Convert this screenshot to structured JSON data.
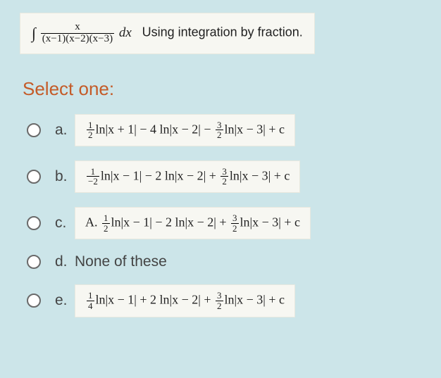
{
  "question": {
    "integral_symbol": "∫",
    "numerator": "x",
    "denominator": "(x−1)(x−2)(x−3)",
    "dx": "dx",
    "tail_text": "Using integration by fraction.",
    "box_bg": "#f7f7f2",
    "box_border": "#e8e8df"
  },
  "prompt": {
    "text": "Select one:",
    "color": "#c45b28",
    "fontsize": 26
  },
  "options": {
    "a": {
      "letter": "a.",
      "frac_num": "1",
      "frac_den": "2",
      "body": "ln|x + 1| − 4 ln|x − 2| − ",
      "frac2_num": "3",
      "frac2_den": "2",
      "tail": "ln|x − 3| + c"
    },
    "b": {
      "letter": "b.",
      "frac_num": "1",
      "frac_den": "−2",
      "body": "ln|x − 1| − 2 ln|x − 2| + ",
      "frac2_num": "3",
      "frac2_den": "2",
      "tail": "ln|x − 3| + c"
    },
    "c": {
      "letter": "c.",
      "prefix": "A. ",
      "frac_num": "1",
      "frac_den": "2",
      "body": "ln|x − 1| − 2 ln|x − 2| + ",
      "frac2_num": "3",
      "frac2_den": "2",
      "tail": "ln|x − 3| + c"
    },
    "d": {
      "letter": "d.",
      "text": "None of these"
    },
    "e": {
      "letter": "e.",
      "frac_num": "1",
      "frac_den": "4",
      "body": "ln|x − 1| + 2 ln|x − 2| + ",
      "frac2_num": "3",
      "frac2_den": "2",
      "tail": "ln|x − 3| + c"
    }
  },
  "colors": {
    "page_bg": "#cce5e9",
    "text": "#222222",
    "letter_color": "#444444",
    "radio_border": "#6a6a6a"
  }
}
